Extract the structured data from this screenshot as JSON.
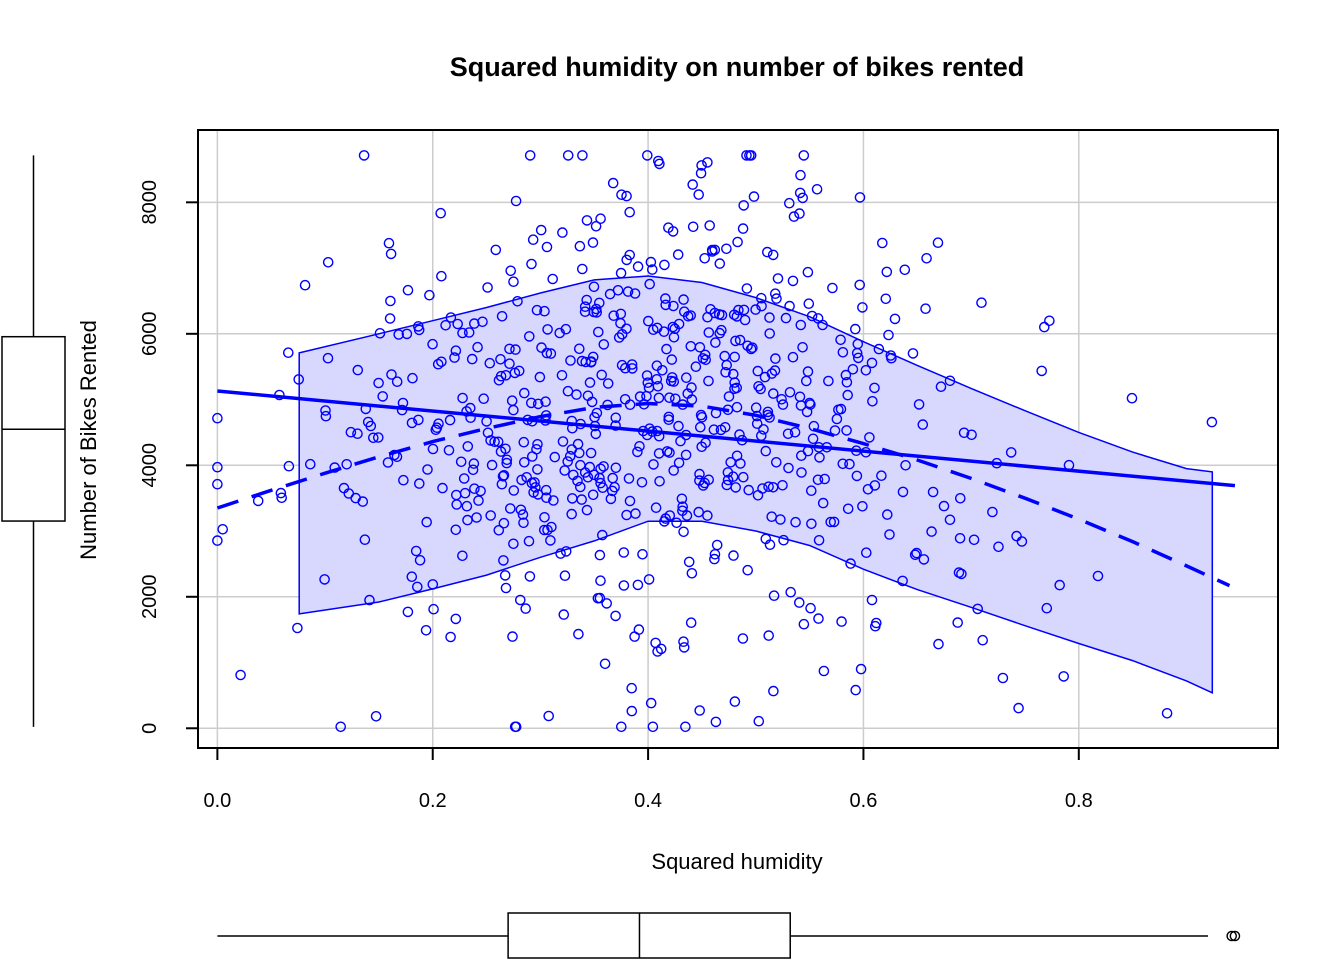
{
  "chart_data": {
    "type": "scatter",
    "title": "Squared humidity on number of bikes rented",
    "xlabel": "Squared humidity",
    "ylabel": "Number of Bikes Rented",
    "xlim": [
      -0.018,
      0.985
    ],
    "ylim": [
      -300,
      9100
    ],
    "x_ticks": [
      0.0,
      0.2,
      0.4,
      0.6,
      0.8
    ],
    "x_tick_labels": [
      "0.0",
      "0.2",
      "0.4",
      "0.6",
      "0.8"
    ],
    "y_ticks": [
      0,
      2000,
      4000,
      6000,
      8000
    ],
    "y_tick_labels": [
      "0",
      "2000",
      "4000",
      "6000",
      "8000"
    ],
    "grid": true,
    "colors": {
      "points": "#0000ff",
      "fit": "#0000ff",
      "band_fill": "#d8d8ff",
      "grid": "#cccccc",
      "axes": "#000000"
    },
    "linear_fit": {
      "x": [
        0.0,
        0.945
      ],
      "y": [
        5130,
        3690
      ]
    },
    "smooth_fit": {
      "x": [
        0.0,
        0.05,
        0.1,
        0.15,
        0.2,
        0.25,
        0.3,
        0.35,
        0.4,
        0.45,
        0.5,
        0.55,
        0.6,
        0.65,
        0.7,
        0.75,
        0.8,
        0.85,
        0.9,
        0.94
      ],
      "y": [
        3350,
        3620,
        3880,
        4130,
        4360,
        4560,
        4740,
        4880,
        4940,
        4900,
        4760,
        4560,
        4330,
        4080,
        3800,
        3500,
        3180,
        2840,
        2470,
        2170
      ]
    },
    "confidence_band": {
      "x": [
        0.076,
        0.15,
        0.2,
        0.25,
        0.3,
        0.35,
        0.4,
        0.45,
        0.5,
        0.55,
        0.6,
        0.65,
        0.7,
        0.75,
        0.8,
        0.85,
        0.9,
        0.924
      ],
      "upper": [
        5710,
        6000,
        6200,
        6400,
        6620,
        6820,
        6880,
        6780,
        6550,
        6260,
        5880,
        5520,
        5170,
        4830,
        4500,
        4200,
        3950,
        3900
      ],
      "lower": [
        1740,
        1920,
        2120,
        2330,
        2600,
        2850,
        3150,
        3150,
        3000,
        2780,
        2420,
        2110,
        1840,
        1560,
        1290,
        1030,
        720,
        540
      ]
    },
    "boxplot_x": {
      "whisker_low": 0.0,
      "q1": 0.27,
      "median": 0.392,
      "q3": 0.532,
      "whisker_high": 0.92,
      "outliers": [
        0.942,
        0.945
      ]
    },
    "boxplot_y": {
      "whisker_low": 22,
      "q1": 3152,
      "median": 4548,
      "q3": 5956,
      "whisker_high": 8714,
      "outliers": []
    },
    "points_n": 731,
    "points_seed": 20231
  }
}
